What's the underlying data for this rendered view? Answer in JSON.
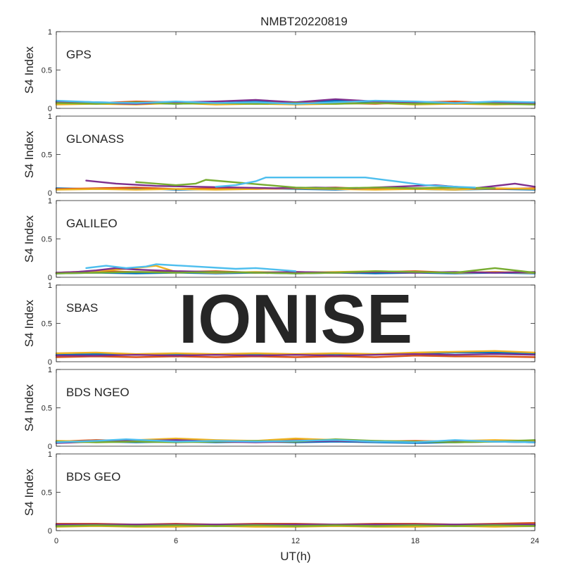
{
  "figure": {
    "title": "NMBT20220819",
    "xlabel": "UT(h)",
    "watermark": "IONISE"
  },
  "colors": [
    "#0072BD",
    "#D95319",
    "#EDB120",
    "#7E2F8E",
    "#77AC30",
    "#4DBEEE",
    "#A2142F"
  ],
  "chart_data": [
    {
      "type": "line",
      "panel_label": "GPS",
      "ylabel": "S4 Index",
      "xlim": [
        0,
        24
      ],
      "ylim": [
        0,
        1
      ],
      "xticks": [
        0,
        6,
        12,
        18,
        24
      ],
      "yticks": [
        0,
        0.5,
        1
      ],
      "ytick_labels": [
        "0",
        "0.5",
        "1"
      ],
      "grid": false,
      "series": [
        {
          "x": [
            0,
            2,
            4,
            6,
            8,
            10,
            12,
            14,
            16,
            18,
            20,
            22,
            24
          ],
          "y": [
            0.09,
            0.08,
            0.07,
            0.06,
            0.07,
            0.09,
            0.07,
            0.1,
            0.08,
            0.07,
            0.06,
            0.07,
            0.06
          ]
        },
        {
          "x": [
            0,
            2,
            4,
            6,
            8,
            10,
            12,
            14,
            16,
            18,
            20,
            22,
            24
          ],
          "y": [
            0.06,
            0.07,
            0.09,
            0.08,
            0.06,
            0.07,
            0.08,
            0.07,
            0.06,
            0.08,
            0.09,
            0.07,
            0.08
          ]
        },
        {
          "x": [
            0,
            2,
            4,
            6,
            8,
            10,
            12,
            14,
            16,
            18,
            20,
            22,
            24
          ],
          "y": [
            0.05,
            0.06,
            0.05,
            0.07,
            0.05,
            0.06,
            0.05,
            0.06,
            0.07,
            0.05,
            0.06,
            0.05,
            0.06
          ]
        },
        {
          "x": [
            0,
            2,
            4,
            6,
            8,
            10,
            12,
            14,
            16,
            18,
            20,
            22,
            24
          ],
          "y": [
            0.08,
            0.07,
            0.06,
            0.08,
            0.09,
            0.11,
            0.08,
            0.12,
            0.09,
            0.08,
            0.07,
            0.08,
            0.07
          ]
        },
        {
          "x": [
            0,
            2,
            4,
            6,
            8,
            10,
            12,
            14,
            16,
            18,
            20,
            22,
            24
          ],
          "y": [
            0.07,
            0.06,
            0.08,
            0.06,
            0.07,
            0.06,
            0.07,
            0.06,
            0.07,
            0.06,
            0.07,
            0.06,
            0.05
          ]
        },
        {
          "x": [
            0,
            2,
            4,
            6,
            8,
            10,
            12,
            14,
            16,
            18,
            20,
            22,
            24
          ],
          "y": [
            0.1,
            0.08,
            0.07,
            0.09,
            0.07,
            0.08,
            0.06,
            0.08,
            0.1,
            0.09,
            0.07,
            0.09,
            0.08
          ]
        }
      ]
    },
    {
      "type": "line",
      "panel_label": "GLONASS",
      "ylabel": "S4 Index",
      "xlim": [
        0,
        24
      ],
      "ylim": [
        0,
        1
      ],
      "xticks": [
        0,
        6,
        12,
        18,
        24
      ],
      "yticks": [
        0,
        0.5,
        1
      ],
      "ytick_labels": [
        "0",
        "0.5",
        "1"
      ],
      "grid": false,
      "series": [
        {
          "x": [
            0,
            2,
            4,
            6,
            8,
            10,
            12,
            14,
            16,
            18,
            20,
            22,
            24
          ],
          "y": [
            0.06,
            0.05,
            0.06,
            0.04,
            0.05,
            0.06,
            0.05,
            0.04,
            0.06,
            0.05,
            0.04,
            0.05,
            0.04
          ]
        },
        {
          "x": [
            0,
            2,
            4,
            6,
            8,
            10,
            12,
            14,
            16,
            18,
            20,
            22,
            24
          ],
          "y": [
            0.05,
            0.06,
            0.07,
            0.05,
            0.06,
            0.05,
            0.06,
            0.07,
            0.05,
            0.06,
            0.07,
            0.05,
            0.06
          ]
        },
        {
          "x": [
            0,
            2,
            4,
            6,
            8,
            10,
            12,
            14,
            16,
            18,
            20,
            22,
            24
          ],
          "y": [
            0.04,
            0.05,
            0.04,
            0.05,
            0.04,
            0.05,
            0.06,
            0.05,
            0.04,
            0.05,
            0.04,
            0.06,
            0.05
          ]
        },
        {
          "x": [
            1.5,
            3,
            5,
            7,
            9,
            11,
            13,
            15,
            17,
            19,
            21,
            23,
            24
          ],
          "y": [
            0.16,
            0.12,
            0.09,
            0.08,
            0.07,
            0.06,
            0.07,
            0.06,
            0.08,
            0.1,
            0.06,
            0.12,
            0.08
          ]
        },
        {
          "x": [
            4,
            5,
            6,
            7,
            7.5,
            12,
            14,
            16,
            18,
            20,
            22
          ],
          "y": [
            0.14,
            0.12,
            0.1,
            0.12,
            0.17,
            0.07,
            0.06,
            0.07,
            0.06,
            0.07,
            0.06
          ]
        },
        {
          "x": [
            8,
            9,
            10,
            10.5,
            15.5,
            17,
            18.5,
            20,
            21
          ],
          "y": [
            0.08,
            0.1,
            0.15,
            0.2,
            0.2,
            0.15,
            0.1,
            0.08,
            0.07
          ]
        }
      ]
    },
    {
      "type": "line",
      "panel_label": "GALILEO",
      "ylabel": "S4 Index",
      "xlim": [
        0,
        24
      ],
      "ylim": [
        0,
        1
      ],
      "xticks": [
        0,
        6,
        12,
        18,
        24
      ],
      "yticks": [
        0,
        0.5,
        1
      ],
      "ytick_labels": [
        "0",
        "0.5",
        "1"
      ],
      "grid": false,
      "series": [
        {
          "x": [
            0,
            2,
            4,
            6,
            8,
            10,
            12,
            14,
            16,
            18,
            20,
            22,
            24
          ],
          "y": [
            0.05,
            0.06,
            0.05,
            0.06,
            0.05,
            0.06,
            0.05,
            0.06,
            0.05,
            0.06,
            0.05,
            0.06,
            0.05
          ]
        },
        {
          "x": [
            0,
            2,
            4,
            6,
            8,
            10,
            12,
            14,
            16,
            18,
            20,
            22,
            24
          ],
          "y": [
            0.06,
            0.08,
            0.07,
            0.07,
            0.08,
            0.06,
            0.07,
            0.06,
            0.07,
            0.08,
            0.06,
            0.07,
            0.06
          ]
        },
        {
          "x": [
            0,
            2,
            4,
            5,
            6,
            8,
            10,
            12,
            14,
            16,
            18,
            20,
            22,
            24
          ],
          "y": [
            0.05,
            0.08,
            0.12,
            0.15,
            0.07,
            0.06,
            0.07,
            0.06,
            0.07,
            0.08,
            0.07,
            0.06,
            0.07,
            0.06
          ]
        },
        {
          "x": [
            0,
            1,
            2,
            3,
            4,
            6,
            8,
            10,
            12,
            14,
            16,
            18,
            20,
            22,
            24
          ],
          "y": [
            0.06,
            0.07,
            0.09,
            0.12,
            0.1,
            0.08,
            0.07,
            0.06,
            0.07,
            0.06,
            0.07,
            0.06,
            0.07,
            0.06,
            0.07
          ]
        },
        {
          "x": [
            0,
            2,
            4,
            6,
            8,
            10,
            12,
            14,
            16,
            18,
            20,
            22,
            24
          ],
          "y": [
            0.05,
            0.06,
            0.07,
            0.06,
            0.07,
            0.06,
            0.05,
            0.06,
            0.08,
            0.07,
            0.06,
            0.12,
            0.06
          ]
        },
        {
          "x": [
            1.5,
            2.5,
            3.5,
            4.5,
            5,
            9,
            10,
            11,
            12
          ],
          "y": [
            0.12,
            0.15,
            0.12,
            0.14,
            0.17,
            0.11,
            0.12,
            0.1,
            0.08
          ]
        }
      ]
    },
    {
      "type": "line",
      "panel_label": "SBAS",
      "ylabel": "S4 Index",
      "xlim": [
        0,
        24
      ],
      "ylim": [
        0,
        1
      ],
      "xticks": [
        0,
        6,
        12,
        18,
        24
      ],
      "yticks": [
        0,
        0.5,
        1
      ],
      "ytick_labels": [
        "0",
        "0.5",
        "1"
      ],
      "grid": false,
      "series": [
        {
          "x": [
            0,
            2,
            4,
            6,
            8,
            10,
            12,
            14,
            16,
            18,
            20,
            22,
            24
          ],
          "y": [
            0.09,
            0.1,
            0.09,
            0.1,
            0.09,
            0.1,
            0.09,
            0.1,
            0.1,
            0.11,
            0.12,
            0.12,
            0.11
          ]
        },
        {
          "x": [
            0,
            2,
            4,
            6,
            8,
            10,
            12,
            14,
            16,
            18,
            20,
            22,
            24
          ],
          "y": [
            0.06,
            0.07,
            0.06,
            0.07,
            0.06,
            0.07,
            0.06,
            0.07,
            0.06,
            0.08,
            0.07,
            0.07,
            0.06
          ]
        },
        {
          "x": [
            0,
            2,
            4,
            6,
            8,
            10,
            12,
            14,
            16,
            18,
            20,
            22,
            24
          ],
          "y": [
            0.11,
            0.12,
            0.1,
            0.11,
            0.1,
            0.11,
            0.1,
            0.11,
            0.1,
            0.12,
            0.13,
            0.14,
            0.12
          ]
        },
        {
          "x": [
            0,
            2,
            4,
            6,
            8,
            10,
            12,
            14,
            16,
            18,
            20,
            22,
            24
          ],
          "y": [
            0.08,
            0.08,
            0.09,
            0.08,
            0.09,
            0.08,
            0.09,
            0.08,
            0.09,
            0.1,
            0.09,
            0.1,
            0.09
          ]
        }
      ]
    },
    {
      "type": "line",
      "panel_label": "BDS NGEO",
      "ylabel": "S4 Index",
      "xlim": [
        0,
        24
      ],
      "ylim": [
        0,
        1
      ],
      "xticks": [
        0,
        6,
        12,
        18,
        24
      ],
      "yticks": [
        0,
        0.5,
        1
      ],
      "ytick_labels": [
        "0",
        "0.5",
        "1"
      ],
      "grid": false,
      "series": [
        {
          "x": [
            0,
            2,
            4,
            6,
            8,
            10,
            12,
            14,
            16,
            18,
            20,
            22,
            24
          ],
          "y": [
            0.05,
            0.06,
            0.05,
            0.06,
            0.05,
            0.06,
            0.05,
            0.06,
            0.05,
            0.04,
            0.05,
            0.06,
            0.05
          ]
        },
        {
          "x": [
            0,
            2,
            4,
            6,
            8,
            10,
            12,
            14,
            16,
            18,
            20,
            22,
            24
          ],
          "y": [
            0.06,
            0.08,
            0.07,
            0.08,
            0.07,
            0.06,
            0.08,
            0.07,
            0.06,
            0.07,
            0.06,
            0.07,
            0.06
          ]
        },
        {
          "x": [
            0,
            2,
            4,
            6,
            8,
            10,
            12,
            14,
            16,
            18,
            20,
            22,
            24
          ],
          "y": [
            0.07,
            0.06,
            0.08,
            0.1,
            0.08,
            0.07,
            0.1,
            0.08,
            0.07,
            0.06,
            0.07,
            0.08,
            0.07
          ]
        },
        {
          "x": [
            0,
            2,
            4,
            6,
            8,
            10,
            12,
            14,
            16,
            18,
            20,
            22,
            24
          ],
          "y": [
            0.04,
            0.06,
            0.07,
            0.08,
            0.06,
            0.05,
            0.06,
            0.07,
            0.06,
            0.05,
            0.07,
            0.06,
            0.05
          ]
        },
        {
          "x": [
            0,
            2,
            4,
            6,
            8,
            10,
            12,
            14,
            16,
            18,
            20,
            22,
            24
          ],
          "y": [
            0.06,
            0.05,
            0.06,
            0.05,
            0.06,
            0.07,
            0.06,
            0.09,
            0.07,
            0.06,
            0.05,
            0.06,
            0.08
          ]
        },
        {
          "x": [
            0,
            2,
            3.5,
            6,
            8,
            10,
            12,
            14,
            16,
            18,
            20,
            22,
            24
          ],
          "y": [
            0.05,
            0.07,
            0.09,
            0.06,
            0.07,
            0.06,
            0.07,
            0.08,
            0.06,
            0.05,
            0.08,
            0.06,
            0.05
          ]
        }
      ]
    },
    {
      "type": "line",
      "panel_label": "BDS GEO",
      "ylabel": "S4 Index",
      "xlim": [
        0,
        24
      ],
      "ylim": [
        0,
        1
      ],
      "xticks": [
        0,
        6,
        12,
        18,
        24
      ],
      "yticks": [
        0,
        0.5,
        1
      ],
      "ytick_labels": [
        "0",
        "0.5",
        "1"
      ],
      "grid": false,
      "series": [
        {
          "x": [
            0,
            2,
            4,
            6,
            8,
            10,
            12,
            14,
            16,
            18,
            20,
            22,
            24
          ],
          "y": [
            0.07,
            0.07,
            0.07,
            0.07,
            0.07,
            0.07,
            0.07,
            0.07,
            0.07,
            0.07,
            0.07,
            0.07,
            0.07
          ]
        },
        {
          "x": [
            0,
            2,
            4,
            6,
            8,
            10,
            12,
            14,
            16,
            18,
            20,
            22,
            24
          ],
          "y": [
            0.09,
            0.09,
            0.08,
            0.09,
            0.08,
            0.09,
            0.09,
            0.08,
            0.09,
            0.09,
            0.08,
            0.09,
            0.1
          ]
        },
        {
          "x": [
            0,
            2,
            4,
            6,
            8,
            10,
            12,
            14,
            16,
            18,
            20,
            22,
            24
          ],
          "y": [
            0.05,
            0.06,
            0.05,
            0.05,
            0.06,
            0.05,
            0.05,
            0.06,
            0.05,
            0.05,
            0.06,
            0.05,
            0.06
          ]
        },
        {
          "x": [
            0,
            2,
            4,
            6,
            8,
            10,
            12,
            14,
            16,
            18,
            20,
            22,
            24
          ],
          "y": [
            0.08,
            0.08,
            0.08,
            0.08,
            0.08,
            0.08,
            0.08,
            0.08,
            0.08,
            0.08,
            0.08,
            0.08,
            0.08
          ]
        },
        {
          "x": [
            0,
            2,
            4,
            6,
            8,
            10,
            12,
            14,
            16,
            18,
            20,
            22,
            24
          ],
          "y": [
            0.06,
            0.07,
            0.06,
            0.07,
            0.06,
            0.07,
            0.06,
            0.07,
            0.06,
            0.07,
            0.06,
            0.07,
            0.06
          ]
        }
      ]
    }
  ]
}
